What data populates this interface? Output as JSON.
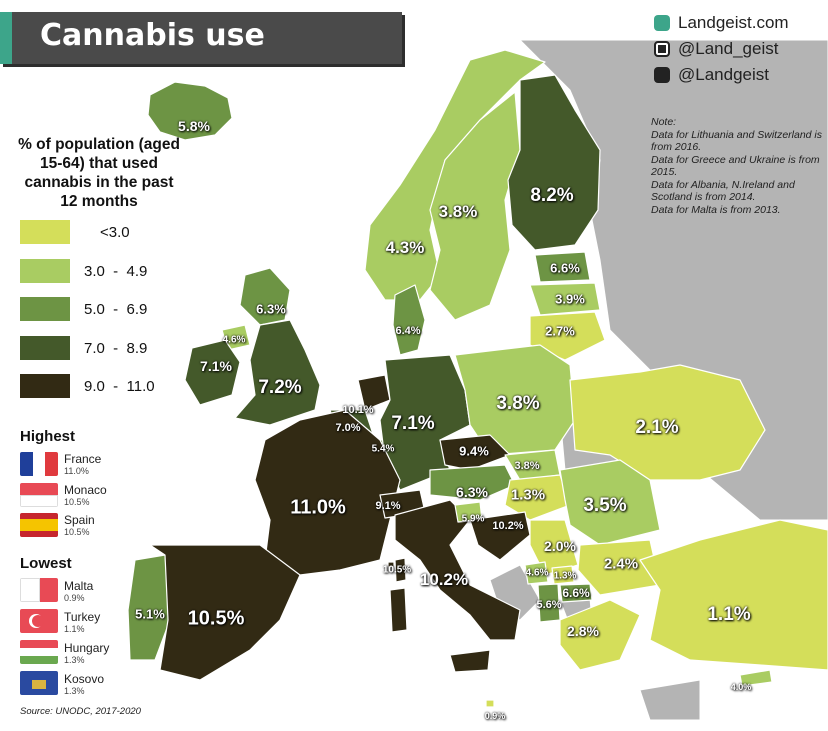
{
  "title": "Cannabis use",
  "brand": {
    "site": "Landgeist.com",
    "instagram": "@Land_geist",
    "twitter": "@Landgeist",
    "icons": [
      "globe-icon",
      "instagram-icon",
      "twitter-icon"
    ]
  },
  "note": [
    "Note:",
    "Data for Lithuania and Switzerland is from 2016.",
    "Data for Greece and Ukraine is from 2015.",
    "Data for Albania, N.Ireland and Scotland is from 2014.",
    "Data for Malta is from 2013."
  ],
  "legend": {
    "title": "% of population (aged 15-64) that used cannabis in the past 12 months",
    "bins": [
      {
        "label": "<3.0",
        "color": "#d4de5a"
      },
      {
        "label": "3.0  -  4.9",
        "color": "#a9cc62"
      },
      {
        "label": "5.0  -  6.9",
        "color": "#6d9444"
      },
      {
        "label": "7.0  -  8.9",
        "color": "#44592a"
      },
      {
        "label": "9.0  -  11.0",
        "color": "#322a14"
      }
    ]
  },
  "highest": {
    "title": "Highest",
    "items": [
      {
        "country": "France",
        "value": "11.0%"
      },
      {
        "country": "Monaco",
        "value": "10.5%"
      },
      {
        "country": "Spain",
        "value": "10.5%"
      }
    ]
  },
  "lowest": {
    "title": "Lowest",
    "items": [
      {
        "country": "Malta",
        "value": "0.9%"
      },
      {
        "country": "Turkey",
        "value": "1.1%"
      },
      {
        "country": "Hungary",
        "value": "1.3%"
      },
      {
        "country": "Kosovo",
        "value": "1.3%"
      }
    ]
  },
  "source": "Source: UNODC, 2017-2020",
  "map_labels": [
    {
      "country": "Iceland",
      "text": "5.8%"
    },
    {
      "country": "Norway",
      "text": "4.3%"
    },
    {
      "country": "Sweden",
      "text": "3.8%"
    },
    {
      "country": "Finland",
      "text": "8.2%"
    },
    {
      "country": "Estonia",
      "text": "6.6%"
    },
    {
      "country": "Latvia",
      "text": "3.9%"
    },
    {
      "country": "Lithuania",
      "text": "2.7%"
    },
    {
      "country": "Denmark",
      "text": "6.4%"
    },
    {
      "country": "Scotland",
      "text": "6.3%"
    },
    {
      "country": "Northern Ireland",
      "text": "4.6%"
    },
    {
      "country": "Ireland",
      "text": "7.1%"
    },
    {
      "country": "England",
      "text": "7.2%"
    },
    {
      "country": "Netherlands",
      "text": "10.1%"
    },
    {
      "country": "Belgium",
      "text": "7.0%"
    },
    {
      "country": "Luxembourg",
      "text": "5.4%"
    },
    {
      "country": "Germany",
      "text": "7.1%"
    },
    {
      "country": "Poland",
      "text": "3.8%"
    },
    {
      "country": "Ukraine",
      "text": "2.1%"
    },
    {
      "country": "Czechia",
      "text": "9.4%"
    },
    {
      "country": "Slovakia",
      "text": "3.8%"
    },
    {
      "country": "Austria",
      "text": "6.3%"
    },
    {
      "country": "Hungary",
      "text": "1.3%"
    },
    {
      "country": "Romania",
      "text": "3.5%"
    },
    {
      "country": "France",
      "text": "11.0%"
    },
    {
      "country": "Switzerland",
      "text": "9.1%"
    },
    {
      "country": "Slovenia",
      "text": "5.9%"
    },
    {
      "country": "Croatia",
      "text": "10.2%"
    },
    {
      "country": "Serbia",
      "text": "2.0%"
    },
    {
      "country": "Bulgaria",
      "text": "2.4%"
    },
    {
      "country": "Monaco",
      "text": "10.5%"
    },
    {
      "country": "Italy",
      "text": "10.2%"
    },
    {
      "country": "Montenegro",
      "text": "4.6%"
    },
    {
      "country": "Kosovo",
      "text": "1.3%"
    },
    {
      "country": "North Macedonia",
      "text": "6.6%"
    },
    {
      "country": "Albania",
      "text": "5.6%"
    },
    {
      "country": "Greece",
      "text": "2.8%"
    },
    {
      "country": "Turkey",
      "text": "1.1%"
    },
    {
      "country": "Portugal",
      "text": "5.1%"
    },
    {
      "country": "Spain",
      "text": "10.5%"
    },
    {
      "country": "Cyprus",
      "text": "4.0%"
    },
    {
      "country": "Malta",
      "text": "0.9%"
    }
  ]
}
